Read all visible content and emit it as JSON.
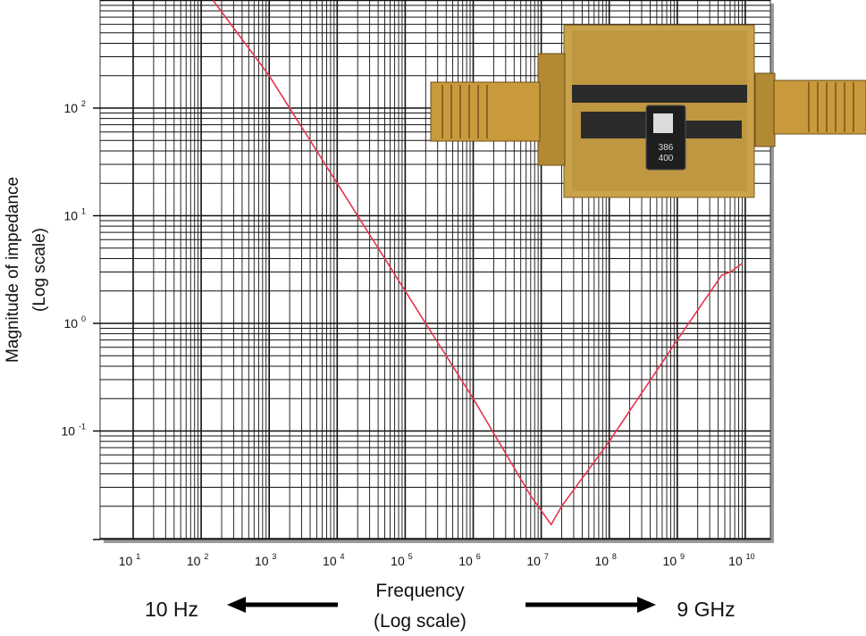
{
  "chart_data": {
    "type": "line",
    "title": "",
    "xlabel": "Frequency",
    "xlabel_sub": "(Log scale)",
    "ylabel": "Magnitude of impedance",
    "ylabel_sub": "(Log scale)",
    "x_scale": "log",
    "y_scale": "log",
    "xlim": [
      10,
      10000000000
    ],
    "ylim": [
      0.01,
      1000
    ],
    "grid": true,
    "legend": "none",
    "x_ticks": [
      {
        "base": "10",
        "exp": "1"
      },
      {
        "base": "10",
        "exp": "2"
      },
      {
        "base": "10",
        "exp": "3"
      },
      {
        "base": "10",
        "exp": "4"
      },
      {
        "base": "10",
        "exp": "5"
      },
      {
        "base": "10",
        "exp": "6"
      },
      {
        "base": "10",
        "exp": "7"
      },
      {
        "base": "10",
        "exp": "8"
      },
      {
        "base": "10",
        "exp": "9"
      },
      {
        "base": "10",
        "exp": "10"
      }
    ],
    "y_ticks": [
      {
        "base": "10",
        "exp": "2"
      },
      {
        "base": "10",
        "exp": "1"
      },
      {
        "base": "10",
        "exp": "0"
      },
      {
        "base": "10",
        "exp": "-1"
      }
    ],
    "range_start_label": "10 Hz",
    "range_end_label": "9 GHz",
    "series": [
      {
        "color": "#e8334a",
        "x": [
          150,
          1000,
          10000,
          100000,
          1000000,
          7000000,
          14000000,
          20000000,
          100000000,
          1000000000,
          4500000000,
          6000000000,
          9000000000
        ],
        "y": [
          1000,
          200,
          20,
          2,
          0.2,
          0.025,
          0.0135,
          0.02,
          0.08,
          0.7,
          2.8,
          3.0,
          3.6
        ]
      }
    ]
  },
  "colors": {
    "curve": "#e8334a",
    "grid": "#111111",
    "frame": "#8a8a8a",
    "board": "#c9a24a"
  },
  "inset_image": "photo-of-pcb-fixture-with-sma-connectors"
}
